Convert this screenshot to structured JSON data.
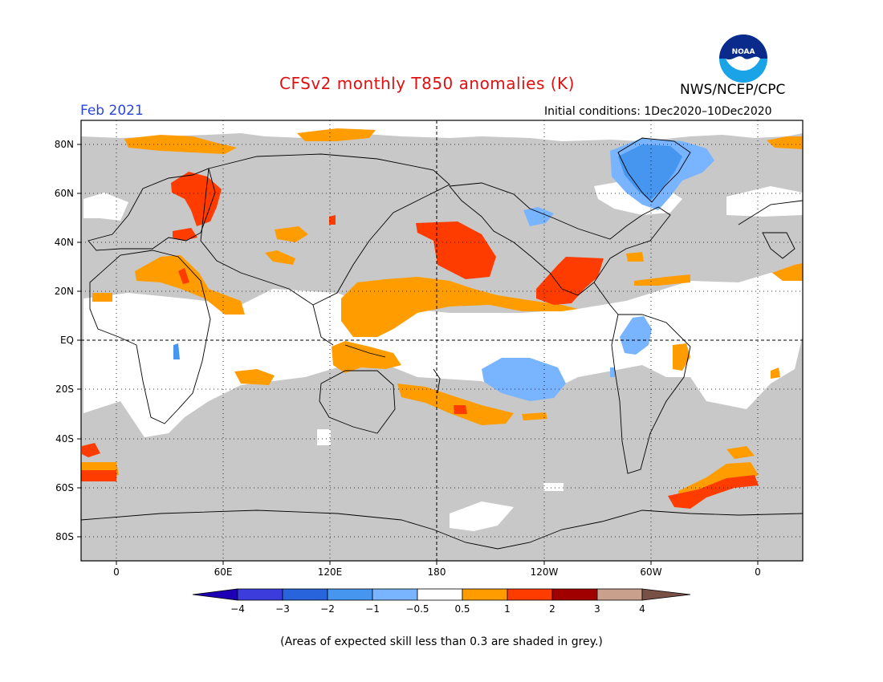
{
  "header": {
    "title": "CFSv2 monthly T850 anomalies (K)",
    "org": "NWS/NCEP/CPC",
    "month": "Feb 2021",
    "initial_conditions": "Initial conditions: 1Dec2020–10Dec2020",
    "logo_text": "NOAA"
  },
  "map": {
    "lat_labels": [
      "80N",
      "60N",
      "40N",
      "20N",
      "EQ",
      "20S",
      "40S",
      "60S",
      "80S"
    ],
    "lon_labels": [
      "0",
      "60E",
      "120E",
      "180",
      "120W",
      "60W",
      "0"
    ],
    "colors": {
      "grey": "#c8c8c8",
      "white": "#ffffff",
      "orange": "#ff9c00",
      "red": "#ff3c00",
      "lightblue": "#78b4ff",
      "blue": "#4696f0"
    }
  },
  "colorbar": {
    "labels": [
      "−4",
      "−3",
      "−2",
      "−1",
      "−0.5",
      "0.5",
      "1",
      "2",
      "3",
      "4"
    ],
    "colors": [
      "#1e00b4",
      "#3c3cdc",
      "#2864dc",
      "#4696f0",
      "#78b4ff",
      "#ffffff",
      "#ff9c00",
      "#ff3c00",
      "#a00000",
      "#c8a08c",
      "#785046"
    ]
  },
  "footnote": "(Areas of expected skill less than 0.3 are shaded in grey.)"
}
